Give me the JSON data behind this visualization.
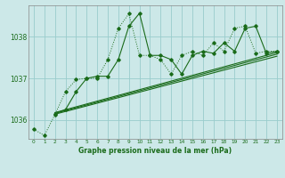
{
  "title": "Graphe pression niveau de la mer (hPa)",
  "background_color": "#cce8e8",
  "grid_color": "#99cccc",
  "line_color": "#1a6b1a",
  "xlim": [
    -0.5,
    23.5
  ],
  "ylim": [
    1035.55,
    1038.75
  ],
  "yticks": [
    1036,
    1037,
    1038
  ],
  "xticks": [
    0,
    1,
    2,
    3,
    4,
    5,
    6,
    7,
    8,
    9,
    10,
    11,
    12,
    13,
    14,
    15,
    16,
    17,
    18,
    19,
    20,
    21,
    22,
    23
  ],
  "line_dotted_x": [
    0,
    1,
    2,
    3,
    4,
    5,
    6,
    7,
    8,
    9,
    10,
    11,
    12,
    13,
    14,
    15,
    16,
    17,
    18,
    19,
    20,
    21,
    22,
    23
  ],
  "line_dotted_y": [
    1035.78,
    1035.63,
    1036.13,
    1036.68,
    1036.97,
    1037.0,
    1037.0,
    1037.45,
    1038.2,
    1038.55,
    1037.55,
    1037.55,
    1037.45,
    1037.1,
    1037.55,
    1037.65,
    1037.55,
    1037.85,
    1037.65,
    1038.2,
    1038.25,
    1037.6,
    1037.65,
    1037.65
  ],
  "line_solid_x": [
    2,
    3,
    4,
    5,
    6,
    7,
    8,
    9,
    10,
    11,
    12,
    13,
    14,
    15,
    16,
    17,
    18,
    19,
    20,
    21,
    22,
    23
  ],
  "line_solid_y": [
    1036.15,
    1036.25,
    1036.68,
    1037.0,
    1037.05,
    1037.05,
    1037.45,
    1038.25,
    1038.56,
    1037.55,
    1037.55,
    1037.45,
    1037.1,
    1037.55,
    1037.65,
    1037.6,
    1037.85,
    1037.65,
    1038.2,
    1038.25,
    1037.6,
    1037.65
  ],
  "line_trend1_x": [
    2,
    23
  ],
  "line_trend1_y": [
    1036.18,
    1037.62
  ],
  "line_trend2_x": [
    2,
    23
  ],
  "line_trend2_y": [
    1036.16,
    1037.58
  ],
  "line_trend3_x": [
    2,
    23
  ],
  "line_trend3_y": [
    1036.14,
    1037.53
  ]
}
